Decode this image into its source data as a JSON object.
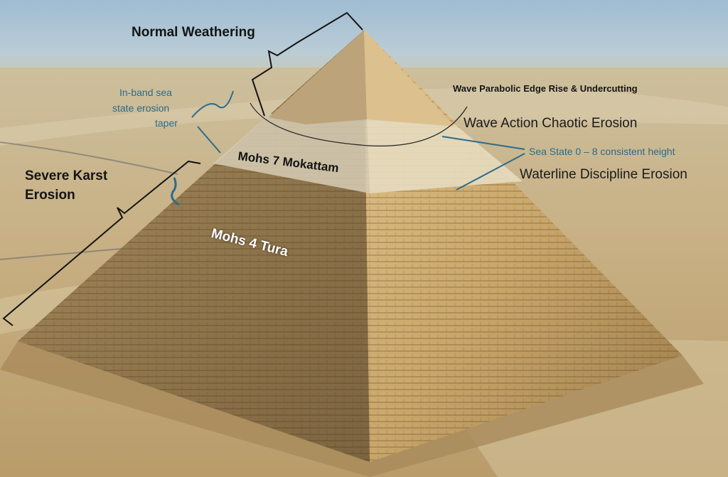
{
  "labels": {
    "normal_weathering": "Normal Weathering",
    "in_band_line1": "In-band sea",
    "in_band_line2": "state erosion",
    "in_band_line3": "taper",
    "wave_parabolic": "Wave Parabolic Edge Rise & Undercutting",
    "wave_action": "Wave Action Chaotic Erosion",
    "sea_state": "Sea State 0 – 8 consistent height",
    "waterline": "Waterline Discipline Erosion",
    "severe_karst_line1": "Severe Karst",
    "severe_karst_line2": "Erosion",
    "mohs7": "Mohs 7 Mokattam",
    "mohs4": "Mohs 4 Tura"
  },
  "colors": {
    "sky": "#a9c3d6",
    "desert": "#c9b48a",
    "pyramid_light": "#d2b27a",
    "pyramid_shadow": "#8f7448",
    "casing": "#c9b98f",
    "annotation_teal": "#2c6b8a",
    "annotation_black": "#141414"
  }
}
